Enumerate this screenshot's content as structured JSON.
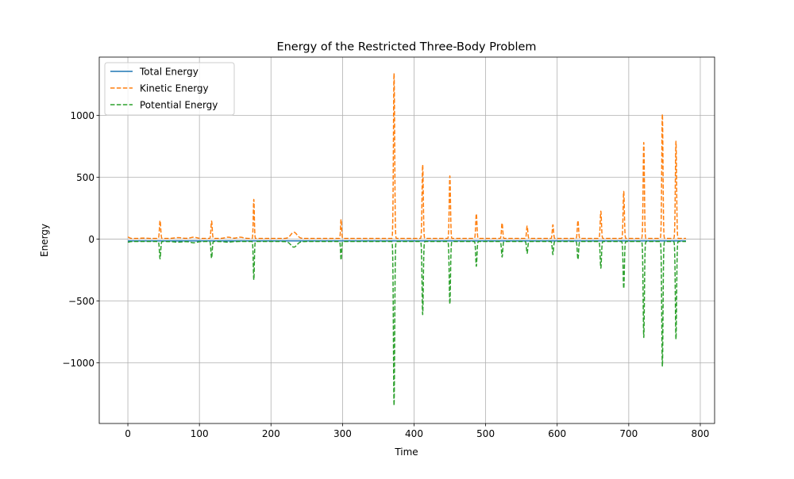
{
  "chart_data": {
    "type": "line",
    "title": "Energy of the Restricted Three-Body Problem",
    "xlabel": "Time",
    "ylabel": "Energy",
    "xlim": [
      -40,
      820
    ],
    "ylim": [
      -1490,
      1470
    ],
    "xticks": [
      0,
      100,
      200,
      300,
      400,
      500,
      600,
      700,
      800
    ],
    "yticks": [
      -1000,
      -500,
      0,
      500,
      1000
    ],
    "ytick_labels": [
      "−1000",
      "−500",
      "0",
      "500",
      "1000"
    ],
    "grid": true,
    "legend_position": "upper-left",
    "x_range": [
      0,
      780
    ],
    "series": [
      {
        "name": "Total Energy",
        "color": "#1f77b4",
        "style": "solid",
        "baseline": -15,
        "peaks": []
      },
      {
        "name": "Kinetic Energy",
        "color": "#ff7f0e",
        "style": "dashed",
        "baseline": 5,
        "peaks": [
          {
            "x": 0,
            "y": 15,
            "w": 3
          },
          {
            "x": 22,
            "y": 8,
            "w": 6
          },
          {
            "x": 45,
            "y": 150,
            "w": 1.2
          },
          {
            "x": 70,
            "y": 12,
            "w": 7
          },
          {
            "x": 92,
            "y": 15,
            "w": 6
          },
          {
            "x": 117,
            "y": 145,
            "w": 1.2
          },
          {
            "x": 140,
            "y": 15,
            "w": 6
          },
          {
            "x": 157,
            "y": 15,
            "w": 6
          },
          {
            "x": 176,
            "y": 320,
            "w": 1
          },
          {
            "x": 232,
            "y": 55,
            "w": 6
          },
          {
            "x": 298,
            "y": 160,
            "w": 1
          },
          {
            "x": 372,
            "y": 1340,
            "w": 1.2
          },
          {
            "x": 412,
            "y": 600,
            "w": 1.2
          },
          {
            "x": 450,
            "y": 510,
            "w": 1.2
          },
          {
            "x": 487,
            "y": 205,
            "w": 1.2
          },
          {
            "x": 523,
            "y": 130,
            "w": 1.2
          },
          {
            "x": 558,
            "y": 105,
            "w": 1.2
          },
          {
            "x": 594,
            "y": 115,
            "w": 1.2
          },
          {
            "x": 629,
            "y": 150,
            "w": 1.2
          },
          {
            "x": 661,
            "y": 225,
            "w": 1.2
          },
          {
            "x": 693,
            "y": 385,
            "w": 1.2
          },
          {
            "x": 721,
            "y": 780,
            "w": 1.2
          },
          {
            "x": 747,
            "y": 1010,
            "w": 1.2
          },
          {
            "x": 766,
            "y": 790,
            "w": 1.2
          }
        ]
      },
      {
        "name": "Potential Energy",
        "color": "#2ca02c",
        "style": "dashed",
        "baseline": -20,
        "peaks": [
          {
            "x": 0,
            "y": -25,
            "w": 3
          },
          {
            "x": 45,
            "y": -160,
            "w": 1.2
          },
          {
            "x": 70,
            "y": -25,
            "w": 7
          },
          {
            "x": 92,
            "y": -30,
            "w": 6
          },
          {
            "x": 117,
            "y": -155,
            "w": 1.2
          },
          {
            "x": 140,
            "y": -25,
            "w": 6
          },
          {
            "x": 176,
            "y": -330,
            "w": 1
          },
          {
            "x": 232,
            "y": -65,
            "w": 6
          },
          {
            "x": 298,
            "y": -170,
            "w": 1
          },
          {
            "x": 372,
            "y": -1345,
            "w": 1.2
          },
          {
            "x": 412,
            "y": -610,
            "w": 1.2
          },
          {
            "x": 450,
            "y": -525,
            "w": 1.2
          },
          {
            "x": 487,
            "y": -220,
            "w": 1.2
          },
          {
            "x": 523,
            "y": -145,
            "w": 1.2
          },
          {
            "x": 558,
            "y": -115,
            "w": 1.2
          },
          {
            "x": 594,
            "y": -125,
            "w": 1.2
          },
          {
            "x": 629,
            "y": -165,
            "w": 1.2
          },
          {
            "x": 661,
            "y": -235,
            "w": 1.2
          },
          {
            "x": 693,
            "y": -400,
            "w": 1.2
          },
          {
            "x": 721,
            "y": -795,
            "w": 1.2
          },
          {
            "x": 747,
            "y": -1030,
            "w": 1.2
          },
          {
            "x": 766,
            "y": -810,
            "w": 1.2
          }
        ]
      }
    ]
  }
}
